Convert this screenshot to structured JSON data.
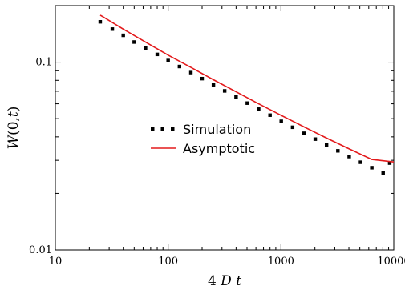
{
  "chart_data": {
    "type": "line",
    "title": "",
    "xlabel_parts": [
      "4 ",
      "D",
      " ",
      "t"
    ],
    "ylabel_parts": [
      "W",
      "(0,",
      "t",
      ")"
    ],
    "xscale": "log",
    "yscale": "log",
    "xlim": [
      10,
      10000
    ],
    "ylim": [
      0.01,
      0.2
    ],
    "x_ticks": [
      {
        "value": 10,
        "label": "10"
      },
      {
        "value": 100,
        "label": "100"
      },
      {
        "value": 1000,
        "label": "1000"
      },
      {
        "value": 10000,
        "label": "10000"
      }
    ],
    "y_ticks": [
      {
        "value": 0.01,
        "label": "0.01"
      },
      {
        "value": 0.1,
        "label": "0.1"
      }
    ],
    "grid": false,
    "legend_position": "center",
    "series": [
      {
        "name": "Simulation",
        "style": "dotted",
        "color": "#000000",
        "x": [
          25,
          32,
          40,
          50,
          63,
          80,
          100,
          126,
          159,
          200,
          252,
          317,
          400,
          503,
          634,
          800,
          1006,
          1268,
          1598,
          2013,
          2536,
          3195,
          4025,
          5071,
          6389,
          8049,
          9200
        ],
        "y": [
          0.164,
          0.15,
          0.139,
          0.128,
          0.119,
          0.11,
          0.102,
          0.0948,
          0.088,
          0.0817,
          0.0758,
          0.0703,
          0.0652,
          0.0605,
          0.0562,
          0.0522,
          0.0484,
          0.045,
          0.0418,
          0.0389,
          0.0362,
          0.0337,
          0.0314,
          0.0293,
          0.0274,
          0.0257,
          0.029
        ]
      },
      {
        "name": "Asymptotic",
        "style": "solid",
        "color": "#e31a1c",
        "x": [
          25,
          40,
          63,
          100,
          159,
          252,
          400,
          634,
          1006,
          1598,
          2536,
          4025,
          6389,
          10000
        ],
        "y": [
          0.178,
          0.15,
          0.128,
          0.109,
          0.0938,
          0.0806,
          0.0695,
          0.06,
          0.052,
          0.0452,
          0.0394,
          0.0345,
          0.0303,
          0.0294
        ]
      }
    ]
  }
}
